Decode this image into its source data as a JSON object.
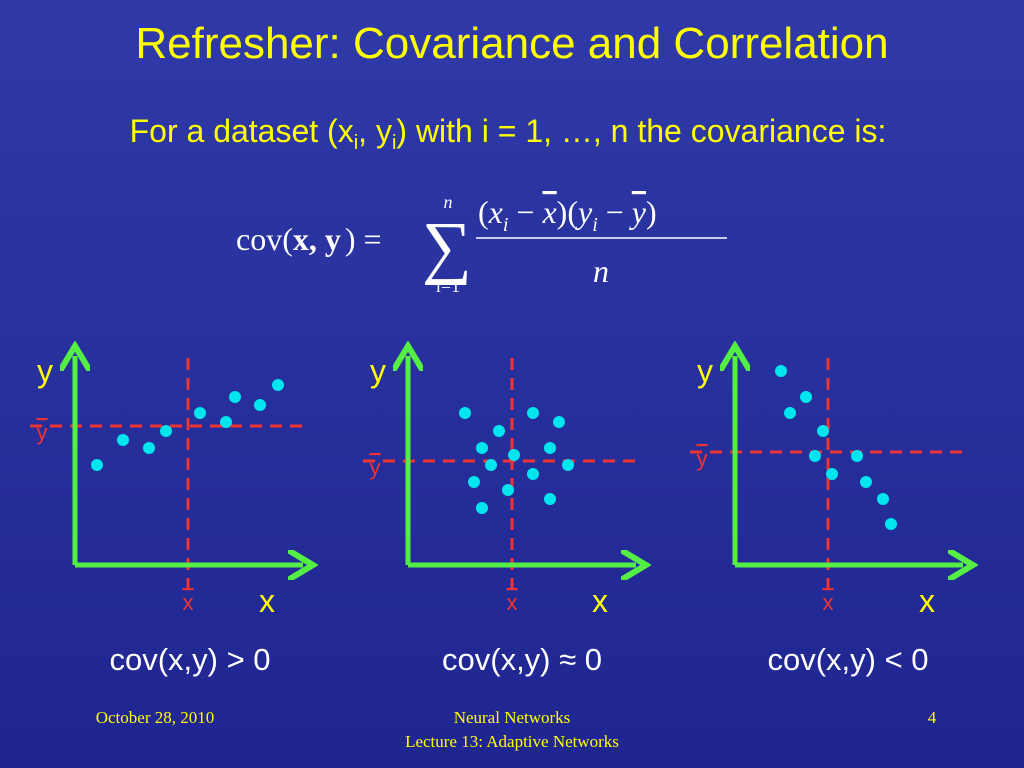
{
  "title": "Refresher: Covariance and Correlation",
  "intro": {
    "parts": [
      "For a dataset (x",
      "i",
      ", y",
      "i",
      ") with i = 1, …, n the covariance is:"
    ]
  },
  "formula": {
    "lhs": "cov(",
    "args": "x, y",
    "rhs": ") =",
    "sum_upper": "n",
    "sum_lower": "i=1",
    "numerator": [
      "(",
      "x",
      "i",
      " − ",
      "x",
      ")(",
      "y",
      "i",
      " − ",
      "y",
      ")"
    ],
    "denominator": "n"
  },
  "panels": [
    {
      "y_label": "y",
      "y_mean_label": "y",
      "x_label": "x",
      "x_mean_label": "x",
      "caption": "cov(x,y) > 0"
    },
    {
      "y_label": "y",
      "y_mean_label": "y",
      "x_label": "x",
      "x_mean_label": "x",
      "caption": "cov(x,y) ≈ 0"
    },
    {
      "y_label": "y",
      "y_mean_label": "y",
      "x_label": "x",
      "x_mean_label": "x",
      "caption": "cov(x,y) < 0"
    }
  ],
  "footer": {
    "date": "October 28, 2010",
    "course": "Neural Networks",
    "lecture": "Lecture 13: Adaptive Networks",
    "page": "4"
  }
}
